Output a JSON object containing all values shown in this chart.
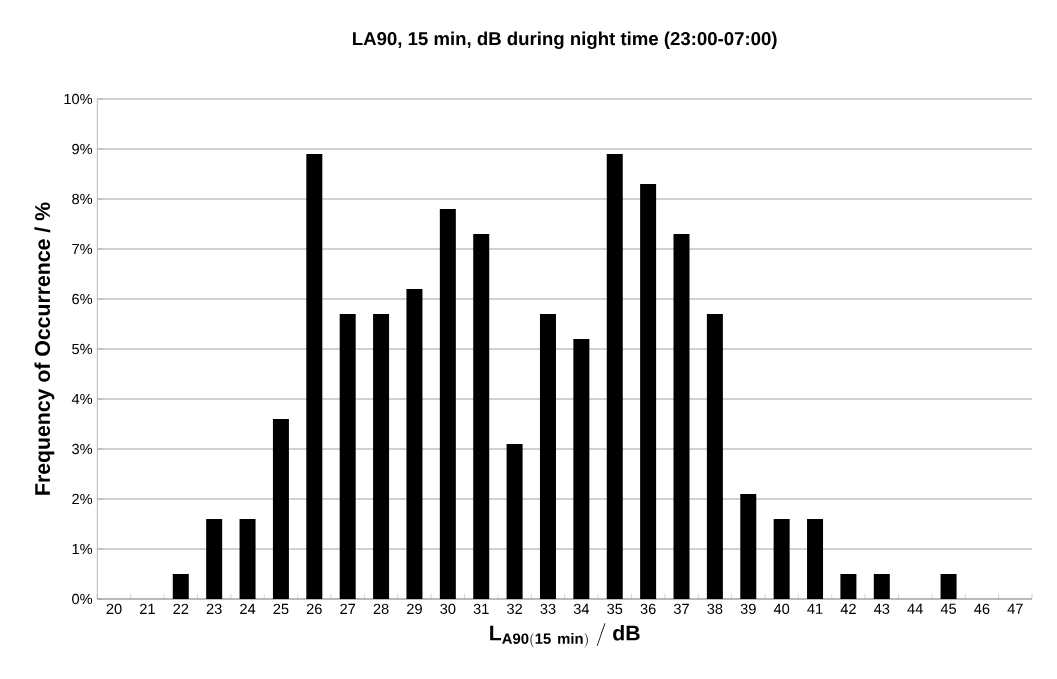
{
  "chart_data": {
    "type": "bar",
    "title": "LA90, 15 min, dB during night time (23:00-07:00)",
    "xlabel": "\\mathbf{L_{A90(15\\ min)}\\ /\\ dB}",
    "ylabel": "Frequency of Occurrence / %",
    "categories": [
      "20",
      "21",
      "22",
      "23",
      "24",
      "25",
      "26",
      "27",
      "28",
      "29",
      "30",
      "31",
      "32",
      "33",
      "34",
      "35",
      "36",
      "37",
      "38",
      "39",
      "40",
      "41",
      "42",
      "43",
      "44",
      "45",
      "46",
      "47"
    ],
    "values": [
      0,
      0,
      0.5,
      1.6,
      1.6,
      3.6,
      8.9,
      5.7,
      5.7,
      6.2,
      7.8,
      7.3,
      3.1,
      5.7,
      5.2,
      8.9,
      8.3,
      7.3,
      5.7,
      2.1,
      1.6,
      1.6,
      0.5,
      0.5,
      0,
      0.5,
      0,
      0
    ],
    "color": "#000000",
    "ylim": [
      0,
      10
    ],
    "yticks": [
      {
        "value": 0,
        "label": "0%"
      },
      {
        "value": 1,
        "label": "1%"
      },
      {
        "value": 2,
        "label": "2%"
      },
      {
        "value": 3,
        "label": "3%"
      },
      {
        "value": 4,
        "label": "4%"
      },
      {
        "value": 5,
        "label": "5%"
      },
      {
        "value": 6,
        "label": "6%"
      },
      {
        "value": 7,
        "label": "7%"
      },
      {
        "value": 8,
        "label": "8%"
      },
      {
        "value": 9,
        "label": "9%"
      },
      {
        "value": 10,
        "label": "10%"
      }
    ],
    "grid": "y"
  }
}
